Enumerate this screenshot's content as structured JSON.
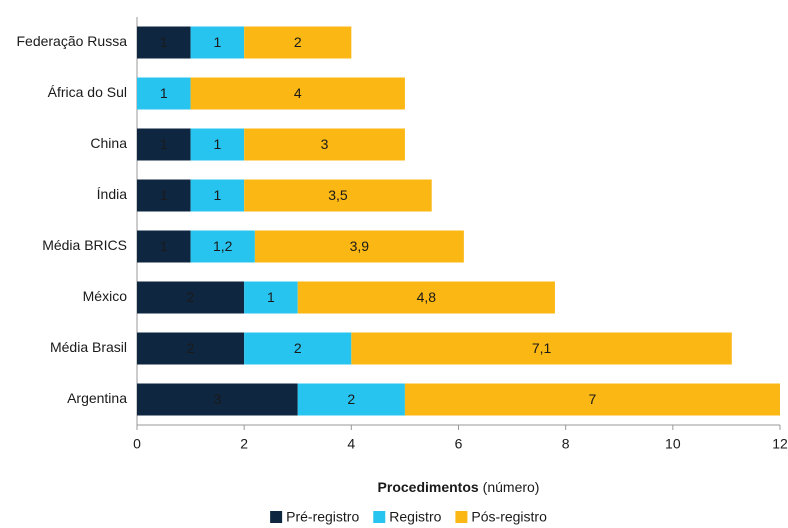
{
  "chart_data": {
    "type": "bar",
    "orientation": "horizontal",
    "stacked": true,
    "x_label": "Procedimentos",
    "x_label_unit": "(número)",
    "categories": [
      "Federação Russa",
      "África do Sul",
      "China",
      "Índia",
      "Média BRICS",
      "México",
      "Média Brasil",
      "Argentina"
    ],
    "category_label_colors": [
      "#1a1a1a",
      "#1a1a1a",
      "#1a1a1a",
      "#1a1a1a",
      "#1a1a1a",
      "#1a1a1a",
      "#b02a37",
      "#1a1a1a"
    ],
    "series": [
      {
        "name": "Pré-registro",
        "color": "#0f2640",
        "label_color": "#ffffff",
        "values": [
          1,
          null,
          1,
          1,
          1,
          2,
          2,
          3
        ]
      },
      {
        "name": "Registro",
        "color": "#27c4f0",
        "label_color": "#ffffff",
        "values": [
          1,
          1,
          1,
          1,
          1.2,
          1,
          2,
          2
        ],
        "value_labels": [
          "1",
          "1",
          "1",
          "1",
          "1,2",
          "1",
          "2",
          "2"
        ]
      },
      {
        "name": "Pós-registro",
        "color": "#fbb713",
        "label_color": "#1a1a1a",
        "values": [
          2,
          4,
          3,
          3.5,
          3.9,
          4.8,
          7.1,
          7
        ],
        "value_labels": [
          "2",
          "4",
          "3",
          "3,5",
          "3,9",
          "4,8",
          "7,1",
          "7"
        ]
      }
    ],
    "xlim": [
      0,
      12
    ],
    "xticks": [
      0,
      2,
      4,
      6,
      8,
      10,
      12
    ],
    "legend": "bottom"
  }
}
